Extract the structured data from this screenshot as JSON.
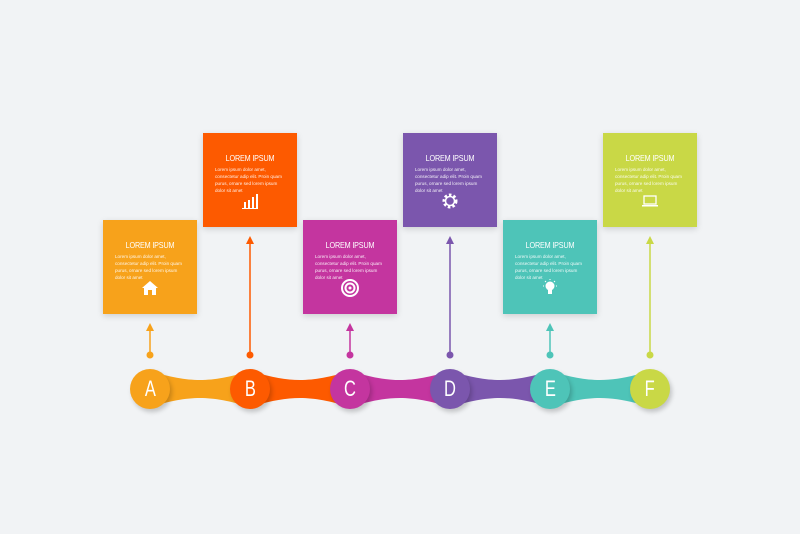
{
  "steps": [
    {
      "letter": "A",
      "title": "LOREM IPSUM",
      "text": "Lorem ipsum dolor amet, consectetur adip elit. Proin quam purus, ornare sed lorem ipsum dolor sit amet",
      "icon": "home-icon",
      "color": "#f7a21b",
      "position": "low"
    },
    {
      "letter": "B",
      "title": "LOREM IPSUM",
      "text": "Lorem ipsum dolor amet, consectetur adip elit. Proin quam purus, ornare sed lorem ipsum dolor sit amet",
      "icon": "bar-chart-icon",
      "color": "#fd5a00",
      "position": "high"
    },
    {
      "letter": "C",
      "title": "LOREM IPSUM",
      "text": "Lorem ipsum dolor amet, consectetur adip elit. Proin quam purus, ornare sed lorem ipsum dolor sit amet",
      "icon": "target-icon",
      "color": "#c4359f",
      "position": "low"
    },
    {
      "letter": "D",
      "title": "LOREM IPSUM",
      "text": "Lorem ipsum dolor amet, consectetur adip elit. Proin quam purus, ornare sed lorem ipsum dolor sit amet",
      "icon": "gear-icon",
      "color": "#7b56ad",
      "position": "high"
    },
    {
      "letter": "E",
      "title": "LOREM IPSUM",
      "text": "Lorem ipsum dolor amet, consectetur adip elit. Proin quam purus, ornare sed lorem ipsum dolor sit amet",
      "icon": "lightbulb-icon",
      "color": "#4ec4b8",
      "position": "low"
    },
    {
      "letter": "F",
      "title": "LOREM IPSUM",
      "text": "Lorem ipsum dolor amet, consectetur adip elit. Proin quam purus, ornare sed lorem ipsum dolor sit amet",
      "icon": "laptop-icon",
      "color": "#c9d846",
      "position": "high"
    }
  ],
  "background": "#f1f3f5"
}
